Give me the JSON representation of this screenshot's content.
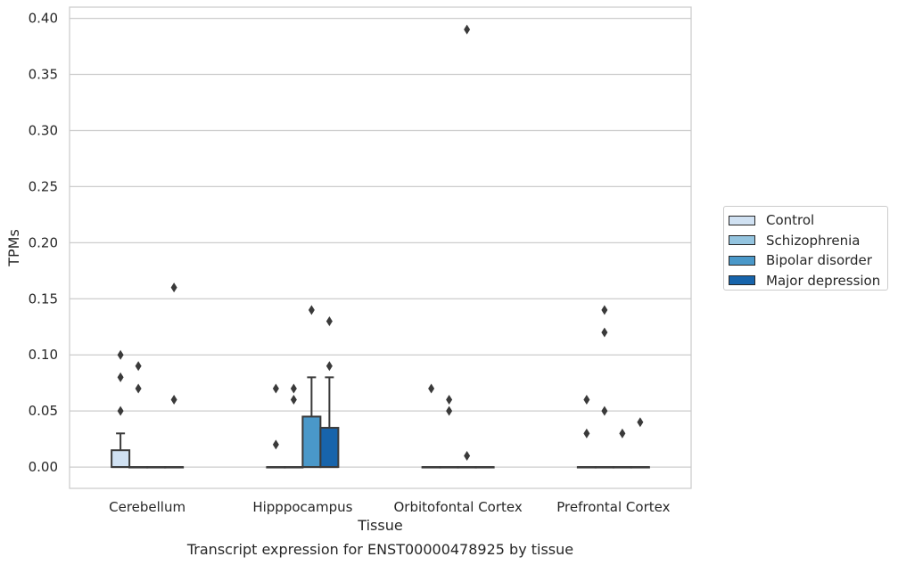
{
  "chart_data": {
    "type": "box",
    "title": "Transcript expression for ENST00000478925 by tissue",
    "xlabel": "Tissue",
    "ylabel": "TPMs",
    "ylim": [
      -0.019,
      0.41
    ],
    "yticks": [
      "0.00",
      "0.05",
      "0.10",
      "0.15",
      "0.20",
      "0.25",
      "0.30",
      "0.35",
      "0.40"
    ],
    "categories": [
      "Cerebellum",
      "Hipppocampus",
      "Orbitofontal Cortex",
      "Prefrontal Cortex"
    ],
    "grid": "horizontal",
    "legend_position": "right",
    "series": [
      {
        "name": "Control",
        "color": "#d0e1f2",
        "boxes": [
          {
            "q1": 0,
            "median": 0,
            "q3": 0.015,
            "whisker_low": 0,
            "whisker_high": 0.03,
            "outliers": [
              0.05,
              0.08,
              0.1
            ]
          },
          {
            "q1": 0,
            "median": 0,
            "q3": 0,
            "whisker_low": 0,
            "whisker_high": 0,
            "outliers": [
              0.02,
              0.07
            ]
          },
          {
            "q1": 0,
            "median": 0,
            "q3": 0,
            "whisker_low": 0,
            "whisker_high": 0,
            "outliers": [
              0.07
            ]
          },
          {
            "q1": 0,
            "median": 0,
            "q3": 0,
            "whisker_low": 0,
            "whisker_high": 0,
            "outliers": [
              0.03,
              0.06
            ]
          }
        ]
      },
      {
        "name": "Schizophrenia",
        "color": "#94c4df",
        "boxes": [
          {
            "q1": 0,
            "median": 0,
            "q3": 0,
            "whisker_low": 0,
            "whisker_high": 0,
            "outliers": [
              0.07,
              0.09
            ]
          },
          {
            "q1": 0,
            "median": 0,
            "q3": 0,
            "whisker_low": 0,
            "whisker_high": 0,
            "outliers": [
              0.06,
              0.07
            ]
          },
          {
            "q1": 0,
            "median": 0,
            "q3": 0,
            "whisker_low": 0,
            "whisker_high": 0,
            "outliers": [
              0.05,
              0.06
            ]
          },
          {
            "q1": 0,
            "median": 0,
            "q3": 0,
            "whisker_low": 0,
            "whisker_high": 0,
            "outliers": [
              0.05,
              0.12,
              0.14
            ]
          }
        ]
      },
      {
        "name": "Bipolar disorder",
        "color": "#4a98c9",
        "boxes": [
          {
            "q1": 0,
            "median": 0,
            "q3": 0,
            "whisker_low": 0,
            "whisker_high": 0,
            "outliers": []
          },
          {
            "q1": 0,
            "median": 0,
            "q3": 0.045,
            "whisker_low": 0,
            "whisker_high": 0.08,
            "outliers": [
              0.14
            ]
          },
          {
            "q1": 0,
            "median": 0,
            "q3": 0,
            "whisker_low": 0,
            "whisker_high": 0,
            "outliers": [
              0.01,
              0.39
            ]
          },
          {
            "q1": 0,
            "median": 0,
            "q3": 0,
            "whisker_low": 0,
            "whisker_high": 0,
            "outliers": [
              0.03
            ]
          }
        ]
      },
      {
        "name": "Major depression",
        "color": "#1764ab",
        "boxes": [
          {
            "q1": 0,
            "median": 0,
            "q3": 0,
            "whisker_low": 0,
            "whisker_high": 0,
            "outliers": [
              0.06,
              0.16
            ]
          },
          {
            "q1": 0,
            "median": 0,
            "q3": 0.035,
            "whisker_low": 0,
            "whisker_high": 0.08,
            "outliers": [
              0.09,
              0.13
            ]
          },
          {
            "q1": 0,
            "median": 0,
            "q3": 0,
            "whisker_low": 0,
            "whisker_high": 0,
            "outliers": []
          },
          {
            "q1": 0,
            "median": 0,
            "q3": 0,
            "whisker_low": 0,
            "whisker_high": 0,
            "outliers": [
              0.04
            ]
          }
        ]
      }
    ]
  }
}
